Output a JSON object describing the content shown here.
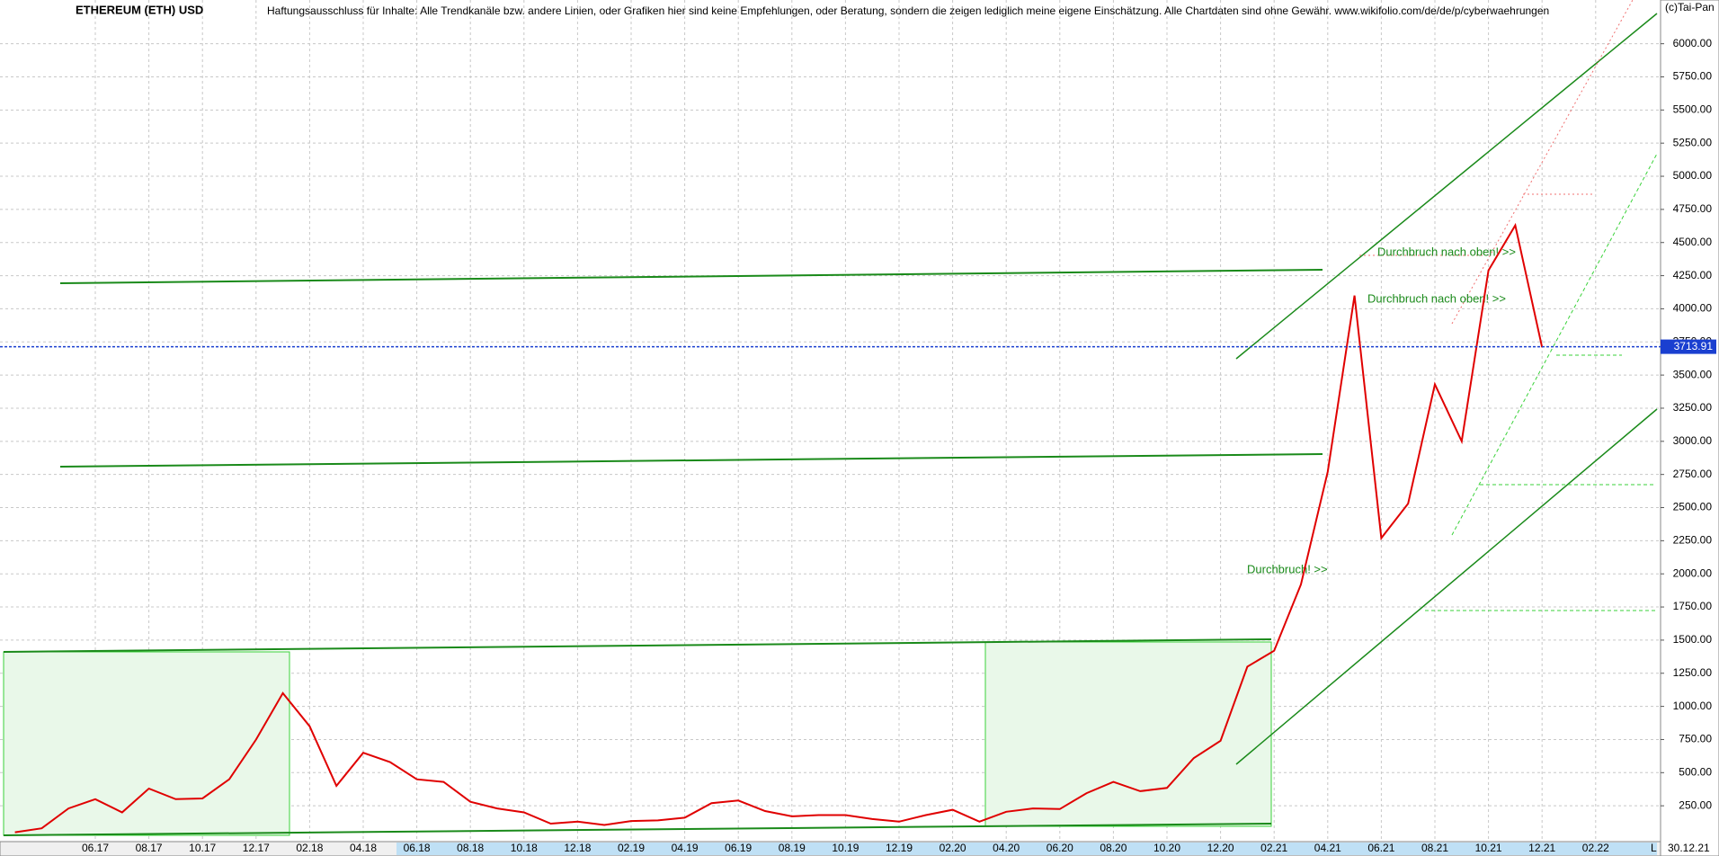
{
  "chart_data": {
    "type": "line",
    "title": "ETHEREUM (ETH) USD",
    "subtitle": "Haftungsausschluss für Inhalte: Alle Trendkanäle bzw. andere Linien, oder Grafiken hier sind keine Empfehlungen, oder Beratung, sondern die zeigen lediglich meine eigene Einschätzung. Alle Chartdaten sind ohne Gewähr.  www.wikifolio.com/de/de/p/cyberwaehrungen",
    "copyright": "(c)Tai-Pan",
    "annotations": [
      "Durchbruch! >>",
      "Durchbruch nach oben! >>",
      "Durchbruch nach oben! >>"
    ],
    "date_label": "30.12.21",
    "corner_label": "L",
    "categories": [
      null,
      null,
      null,
      "06.17",
      null,
      "08.17",
      null,
      "10.17",
      null,
      "12.17",
      null,
      "02.18",
      null,
      "04.18",
      null,
      "06.18",
      null,
      "08.18",
      null,
      "10.18",
      null,
      "12.18",
      null,
      "02.19",
      null,
      "04.19",
      null,
      "06.19",
      null,
      "08.19",
      null,
      "10.19",
      null,
      "12.19",
      null,
      "02.20",
      null,
      "04.20",
      null,
      "06.20",
      null,
      "08.20",
      null,
      "10.20",
      null,
      "12.20",
      null,
      "02.21",
      null,
      "04.21",
      null,
      "06.21",
      null,
      "08.21",
      null,
      "10.21",
      null,
      "12.21",
      null,
      "02.22"
    ],
    "series": [
      {
        "name": "ETH",
        "color": "#e00000",
        "values": [
          50,
          80,
          230,
          300,
          200,
          380,
          300,
          305,
          450,
          750,
          1100,
          850,
          400,
          650,
          580,
          450,
          430,
          280,
          230,
          200,
          115,
          130,
          105,
          135,
          140,
          160,
          270,
          290,
          210,
          170,
          180,
          180,
          150,
          130,
          180,
          220,
          130,
          205,
          230,
          225,
          345,
          430,
          360,
          385,
          610,
          740,
          1300,
          1420,
          1920,
          2770,
          4100,
          2270,
          2530,
          3430,
          3000,
          4290,
          4630,
          3710,
          null,
          null
        ]
      }
    ],
    "last_value": 3713.91,
    "ylim": [
      0,
      6330
    ],
    "yticks": [
      {
        "value": 250,
        "label": "250.00"
      },
      {
        "value": 500,
        "label": "500.00"
      },
      {
        "value": 750,
        "label": "750.00"
      },
      {
        "value": 1000,
        "label": "1000.00"
      },
      {
        "value": 1250,
        "label": "1250.00"
      },
      {
        "value": 1500,
        "label": "1500.00"
      },
      {
        "value": 1750,
        "label": "1750.00"
      },
      {
        "value": 2000,
        "label": "2000.00"
      },
      {
        "value": 2250,
        "label": "2250.00"
      },
      {
        "value": 2500,
        "label": "2500.00"
      },
      {
        "value": 2750,
        "label": "2750.00"
      },
      {
        "value": 3000,
        "label": "3000.00"
      },
      {
        "value": 3250,
        "label": "3250.00"
      },
      {
        "value": 3500,
        "label": "3500.00"
      },
      {
        "value": 3750,
        "label": "3750.00"
      },
      {
        "value": 4000,
        "label": "4000.00"
      },
      {
        "value": 4250,
        "label": "4250.00"
      },
      {
        "value": 4500,
        "label": "4500.00"
      },
      {
        "value": 4750,
        "label": "4750.00"
      },
      {
        "value": 5000,
        "label": "5000.00"
      },
      {
        "value": 5250,
        "label": "5250.00"
      },
      {
        "value": 5500,
        "label": "5500.00"
      },
      {
        "value": 5750,
        "label": "5750.00"
      },
      {
        "value": 6000,
        "label": "6000.00"
      }
    ],
    "grid": true,
    "last_value_color": "#1a3fd0"
  }
}
